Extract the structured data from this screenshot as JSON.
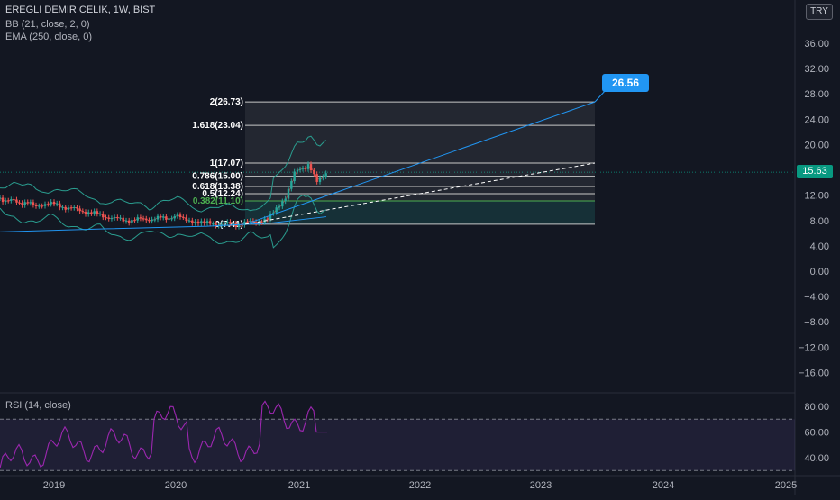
{
  "header": {
    "symbol_title": "EREGLI DEMIR CELIK, 1W, BIST",
    "indicator_bb": "BB (21, close, 2, 0)",
    "indicator_ema": "EMA (250, close, 0)",
    "currency": "TRY"
  },
  "price_axis": {
    "ticks": [
      "36.00",
      "32.00",
      "28.00",
      "24.00",
      "20.00",
      "16.00",
      "12.00",
      "8.00",
      "4.00",
      "0.00",
      "−4.00",
      "−8.00",
      "−12.00",
      "−16.00"
    ],
    "tick_values": [
      36,
      32,
      28,
      24,
      20,
      16,
      12,
      8,
      4,
      0,
      -4,
      -8,
      -12,
      -16
    ],
    "last_price": "15.63"
  },
  "time_axis": {
    "labels": [
      "2019",
      "2020",
      "2021",
      "2022",
      "2023",
      "2024",
      "2025"
    ]
  },
  "fib_levels": [
    {
      "label": "2(26.73)",
      "value": 26.73
    },
    {
      "label": "1.618(23.04)",
      "value": 23.04
    },
    {
      "label": "1(17.07)",
      "value": 17.07
    },
    {
      "label": "0.786(15.00)",
      "value": 15.0
    },
    {
      "label": "0.618(13.38)",
      "value": 13.38
    },
    {
      "label": "0.5(12.24)",
      "value": 12.24
    },
    {
      "label": "0.382(11.10)",
      "value": 11.1
    },
    {
      "label": "0(7.41)",
      "value": 7.41
    }
  ],
  "target_label": "26.56",
  "rsi": {
    "title": "RSI (14, close)",
    "ticks": [
      "80.00",
      "60.00",
      "40.00"
    ],
    "tick_values": [
      80,
      60,
      40
    ]
  },
  "colors": {
    "background": "#131722",
    "up_candle": "#26a69a",
    "down_candle": "#ef5350",
    "bb": "#2a9d8f",
    "ema": "#2196f3",
    "rsi_line": "#9c27b0",
    "target": "#2196f3"
  },
  "chart_data": {
    "type": "line",
    "x": [
      "2018.5",
      "2018.75",
      "2019",
      "2019.25",
      "2019.5",
      "2019.75",
      "2020",
      "2020.25",
      "2020.5",
      "2020.75",
      "2020.9",
      "2021",
      "2021.1",
      "2021.15",
      "2021.2"
    ],
    "series": [
      {
        "values": [
          11.5,
          10.5,
          10.6,
          9.5,
          8.0,
          8.3,
          8.6,
          7.5,
          7.4,
          8.1,
          11.8,
          15.5,
          16.8,
          14.0,
          15.63
        ]
      }
    ],
    "ylim": [
      -19,
      40
    ]
  }
}
